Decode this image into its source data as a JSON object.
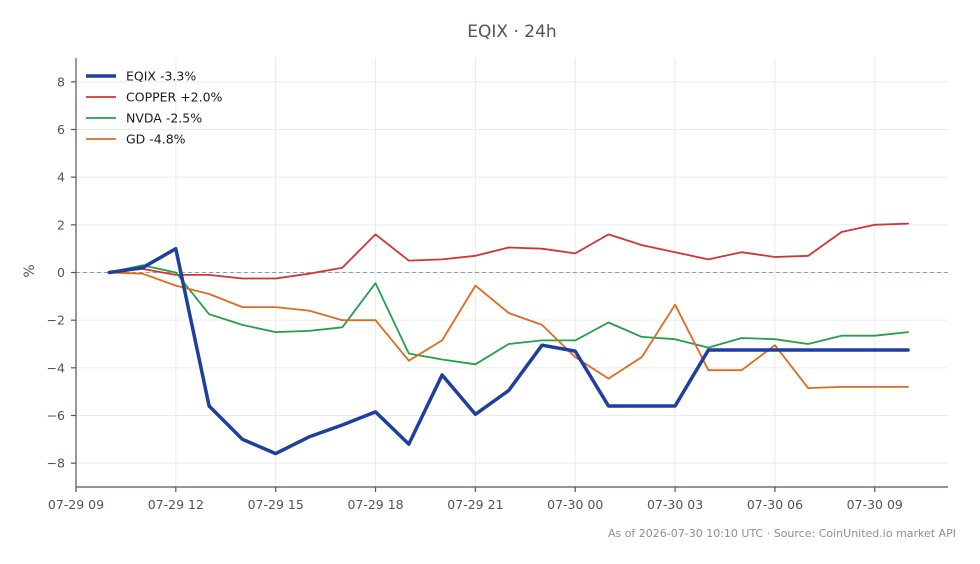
{
  "chart_data": {
    "type": "line",
    "title": "EQIX · 24h",
    "ylabel": "%",
    "xlabel": "",
    "ylim": [
      -9,
      9
    ],
    "xlim_hours": [
      9,
      35.2
    ],
    "grid": true,
    "legend_position": "top-left",
    "zero_line": true,
    "yticks": [
      -8,
      -6,
      -4,
      -2,
      0,
      2,
      4,
      6,
      8
    ],
    "ytick_labels": [
      "−8",
      "−6",
      "−4",
      "−2",
      "0",
      "2",
      "4",
      "6",
      "8"
    ],
    "xticks": [
      {
        "label": "07-29 09",
        "hour": 9
      },
      {
        "label": "07-29 12",
        "hour": 12
      },
      {
        "label": "07-29 15",
        "hour": 15
      },
      {
        "label": "07-29 18",
        "hour": 18
      },
      {
        "label": "07-29 21",
        "hour": 21
      },
      {
        "label": "07-30 00",
        "hour": 24
      },
      {
        "label": "07-30 03",
        "hour": 27
      },
      {
        "label": "07-30 06",
        "hour": 30
      },
      {
        "label": "07-30 09",
        "hour": 33
      }
    ],
    "x_hours": [
      10,
      11,
      12,
      13,
      14,
      15,
      16,
      17,
      18,
      19,
      20,
      21,
      22,
      23,
      24,
      25,
      26,
      27,
      28,
      29,
      30,
      31,
      32,
      33,
      34
    ],
    "series": [
      {
        "name": "EQIX -3.3%",
        "color": "#1f3f9e",
        "width": 3.5,
        "values": [
          0.0,
          0.2,
          1.0,
          -5.6,
          -7.0,
          -7.6,
          -6.9,
          -6.4,
          -5.85,
          -7.2,
          -4.3,
          -5.95,
          -4.95,
          -3.05,
          -3.3,
          -5.6,
          -5.6,
          -5.6,
          -3.25,
          -3.25,
          -3.25,
          -3.25,
          -3.25,
          -3.25,
          -3.25
        ]
      },
      {
        "name": "COPPER +2.0%",
        "color": "#d03535",
        "width": 1.8,
        "values": [
          0.0,
          0.15,
          -0.1,
          -0.1,
          -0.25,
          -0.25,
          -0.05,
          0.2,
          1.6,
          0.5,
          0.55,
          0.7,
          1.05,
          1.0,
          0.8,
          1.6,
          1.15,
          0.85,
          0.55,
          0.85,
          0.65,
          0.7,
          1.7,
          2.0,
          2.05
        ]
      },
      {
        "name": "NVDA -2.5%",
        "color": "#22a04b",
        "width": 1.8,
        "values": [
          0.0,
          0.3,
          0.0,
          -1.75,
          -2.2,
          -2.5,
          -2.45,
          -2.3,
          -0.45,
          -3.4,
          -3.65,
          -3.85,
          -3.0,
          -2.85,
          -2.85,
          -2.1,
          -2.7,
          -2.8,
          -3.15,
          -2.75,
          -2.8,
          -3.0,
          -2.65,
          -2.65,
          -2.5
        ]
      },
      {
        "name": "GD -4.8%",
        "color": "#e06a1e",
        "width": 1.8,
        "values": [
          0.0,
          -0.05,
          -0.55,
          -0.9,
          -1.45,
          -1.45,
          -1.6,
          -2.0,
          -2.0,
          -3.7,
          -2.85,
          -0.55,
          -1.7,
          -2.2,
          -3.55,
          -4.45,
          -3.55,
          -1.35,
          -4.1,
          -4.1,
          -3.05,
          -4.85,
          -4.8,
          -4.8,
          -4.8
        ]
      }
    ]
  },
  "footer": {
    "text": "As of 2026-07-30 10:10 UTC · Source: CoinUnited.io market API"
  }
}
